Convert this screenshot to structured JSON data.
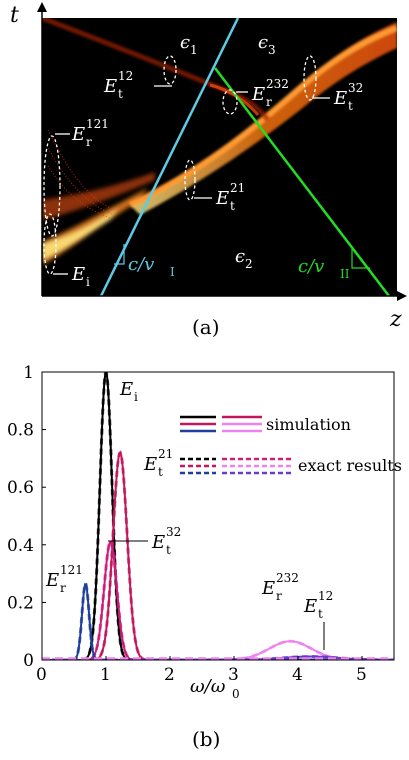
{
  "panel_a": {
    "caption": "(a)",
    "axis_x": "z",
    "axis_y": "t",
    "regions": {
      "eps1": "ϵ",
      "eps1_sub": "1",
      "eps2": "ϵ",
      "eps2_sub": "2",
      "eps3": "ϵ",
      "eps3_sub": "3"
    },
    "annotations": {
      "Et12": {
        "main": "E",
        "sub": "t",
        "sup": "12"
      },
      "Er232": {
        "main": "E",
        "sub": "r",
        "sup": "232"
      },
      "Et32": {
        "main": "E",
        "sub": "t",
        "sup": "32"
      },
      "Er121": {
        "main": "E",
        "sub": "r",
        "sup": "121"
      },
      "Et21": {
        "main": "E",
        "sub": "t",
        "sup": "21"
      },
      "Ei": {
        "main": "E",
        "sub": "i"
      }
    },
    "speed_labels": {
      "left": {
        "text": "c/v",
        "sub": "I",
        "color": "#5ecbe6"
      },
      "right": {
        "text": "c/v",
        "sub": "II",
        "color": "#22dd22"
      }
    },
    "colors": {
      "background": "#000000",
      "line_I": "#5ecbe6",
      "line_II": "#22dd22",
      "beam": "#ff6a10"
    }
  },
  "chart_data": {
    "type": "line",
    "caption": "(b)",
    "xlabel": "ω/ω",
    "xlabel_sub": "0",
    "xlim": [
      0,
      5.5
    ],
    "ylim": [
      0,
      1
    ],
    "xticks": [
      "0",
      "1",
      "2",
      "3",
      "4",
      "5"
    ],
    "yticks": [
      "0",
      "0.2",
      "0.4",
      "0.6",
      "0.8",
      "1"
    ],
    "legend": {
      "simulation": "simulation",
      "exact": "exact results",
      "position": "top-right"
    },
    "series": [
      {
        "key": "Ei",
        "center": 1.0,
        "amplitude": 1.0,
        "width": 0.095,
        "color": "#000000"
      },
      {
        "key": "Et21",
        "center": 1.22,
        "amplitude": 0.72,
        "width": 0.11,
        "color": "#c2185b"
      },
      {
        "key": "Et32",
        "center": 1.07,
        "amplitude": 0.41,
        "width": 0.1,
        "color": "#d01a7a"
      },
      {
        "key": "Er121",
        "center": 0.68,
        "amplitude": 0.265,
        "width": 0.055,
        "color": "#1f3f9e"
      },
      {
        "key": "Er232",
        "center": 3.88,
        "amplitude": 0.065,
        "width": 0.33,
        "color": "#ee82ee"
      },
      {
        "key": "Et12",
        "center": 4.2,
        "amplitude": 0.012,
        "width": 0.45,
        "color": "#6a3acb"
      }
    ],
    "labels": {
      "Ei": {
        "main": "E",
        "sub": "i"
      },
      "Et21": {
        "main": "E",
        "sub": "t",
        "sup": "21"
      },
      "Et32": {
        "main": "E",
        "sub": "t",
        "sup": "32"
      },
      "Er121": {
        "main": "E",
        "sub": "r",
        "sup": "121"
      },
      "Er232": {
        "main": "E",
        "sub": "r",
        "sup": "232"
      },
      "Et12": {
        "main": "E",
        "sub": "t",
        "sup": "12"
      }
    },
    "legend_sim_colors": [
      "#000000",
      "#c2185b",
      "#1f3f9e"
    ],
    "legend_sim_colors2": [
      "#c2185b",
      "#ee82ee",
      "#ee82ee"
    ],
    "legend_exact_colors": [
      "#000000",
      "#c2185b",
      "#1f3f9e"
    ],
    "legend_exact_colors2": [
      "#d01a7a",
      "#ee82ee",
      "#6a3acb"
    ]
  }
}
